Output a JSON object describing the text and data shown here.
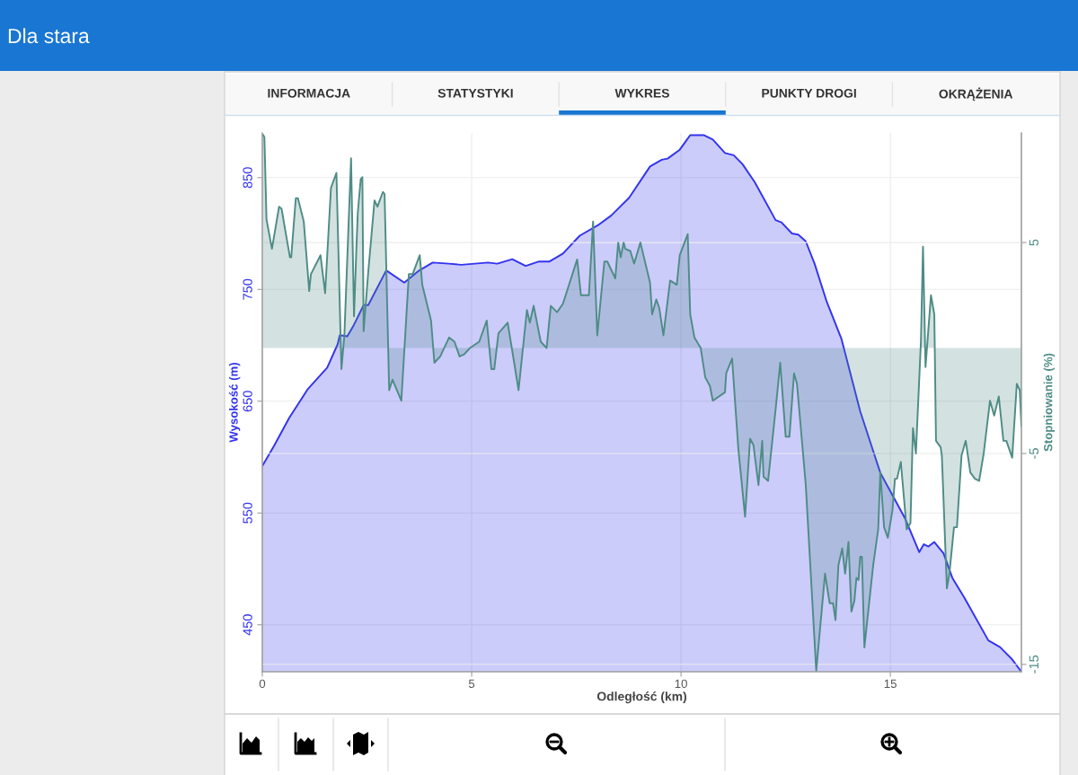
{
  "chart_data": {
    "type": "area",
    "title": "Dla stara",
    "annotations": [
      "INFORMACJA",
      "STATYSTYKI",
      "WYKRES",
      "PUNKTY DROGI",
      "OKRĄŻENIA"
    ],
    "xlabel": "Odległość (km)",
    "ylabel": "Wysokość (m)",
    "y2label": "Stopniowanie (%)",
    "xlim": [
      0,
      18.13
    ],
    "xticks": [
      0,
      5,
      10,
      15
    ],
    "ylim": [
      408,
      890
    ],
    "yticks": [
      450,
      550,
      650,
      750,
      850
    ],
    "y2lim": [
      -15.35,
      10.2
    ],
    "y2ticks": [
      -15,
      -5,
      5
    ],
    "grid": true,
    "series": [
      {
        "color": "#3333ee",
        "x": [
          0,
          0.28,
          0.64,
          1.09,
          1.55,
          1.8,
          1.85,
          2.03,
          2.17,
          2.42,
          2.53,
          2.96,
          3.39,
          3.75,
          4.07,
          4.46,
          4.75,
          5.39,
          5.61,
          5.97,
          6.29,
          6.61,
          6.86,
          7.18,
          7.58,
          8.04,
          8.33,
          8.76,
          9.26,
          9.54,
          9.68,
          9.97,
          10.22,
          10.54,
          10.76,
          11.05,
          11.26,
          11.47,
          11.76,
          12.26,
          12.4,
          12.65,
          12.8,
          12.98,
          13.19,
          13.48,
          13.83,
          14.28,
          14.76,
          15.34,
          15.69,
          15.8,
          15.91,
          16.05,
          16.27,
          16.48,
          16.77,
          17.34,
          17.62,
          17.91,
          18.13
        ],
        "values": [
          592,
          610,
          635,
          661,
          680,
          701,
          709,
          708,
          717,
          736,
          736,
          767,
          756,
          767,
          774,
          773,
          772,
          774,
          773,
          777,
          771,
          775,
          775,
          782,
          798,
          808,
          816,
          832,
          860,
          866,
          867,
          875,
          888,
          888,
          884,
          872,
          870,
          862,
          846,
          812,
          810,
          800,
          799,
          793,
          773,
          739,
          706,
          641,
          586,
          546,
          515,
          522,
          520,
          524,
          514,
          492,
          474,
          436,
          430,
          419,
          408
        ]
      },
      {
        "axis": "y2",
        "color": "#4f8c86",
        "x": [
          0.02,
          0.05,
          0.1,
          0.23,
          0.4,
          0.46,
          0.66,
          0.69,
          0.8,
          0.85,
          0.99,
          1.12,
          1.16,
          1.39,
          1.5,
          1.64,
          1.77,
          1.87,
          1.89,
          1.96,
          2.12,
          2.19,
          2.25,
          2.28,
          2.35,
          2.39,
          2.42,
          2.53,
          2.68,
          2.75,
          2.88,
          2.92,
          3.03,
          3.11,
          3.32,
          3.5,
          3.59,
          3.76,
          3.82,
          4.03,
          4.11,
          4.25,
          4.46,
          4.59,
          4.71,
          4.82,
          4.96,
          5.18,
          5.36,
          5.47,
          5.54,
          5.64,
          5.86,
          6.04,
          6.12,
          6.32,
          6.39,
          6.48,
          6.65,
          6.79,
          6.89,
          7.04,
          7.18,
          7.52,
          7.61,
          7.8,
          7.9,
          8.0,
          8.17,
          8.24,
          8.43,
          8.5,
          8.56,
          8.63,
          8.67,
          8.79,
          8.88,
          9.03,
          9.26,
          9.31,
          9.41,
          9.48,
          9.58,
          9.74,
          9.9,
          9.97,
          10.16,
          10.22,
          10.32,
          10.47,
          10.58,
          10.69,
          10.76,
          11.05,
          11.08,
          11.22,
          11.37,
          11.53,
          11.65,
          11.73,
          11.85,
          11.94,
          11.97,
          12.08,
          12.26,
          12.37,
          12.5,
          12.59,
          12.7,
          12.77,
          12.98,
          13.23,
          13.44,
          13.55,
          13.63,
          13.69,
          13.76,
          13.85,
          13.92,
          14.0,
          14.07,
          14.14,
          14.19,
          14.24,
          14.28,
          14.32,
          14.38,
          14.59,
          14.71,
          14.76,
          14.85,
          14.94,
          15.05,
          15.11,
          15.16,
          15.25,
          15.39,
          15.48,
          15.54,
          15.61,
          15.73,
          15.78,
          15.84,
          15.97,
          16.05,
          16.09,
          16.2,
          16.23,
          16.35,
          16.41,
          16.52,
          16.59,
          16.7,
          16.8,
          16.91,
          17.02,
          17.12,
          17.23,
          17.38,
          17.48,
          17.59,
          17.7,
          17.77,
          17.91,
          18.02,
          18.09,
          18.13
        ],
        "values": [
          10.1,
          10.0,
          6.1,
          4.7,
          6.7,
          6.6,
          4.3,
          4.3,
          7.1,
          7.1,
          6.0,
          2.7,
          3.5,
          4.4,
          2.6,
          7.6,
          8.3,
          0.5,
          -1.0,
          0.6,
          9.0,
          1.5,
          4.9,
          6.4,
          8.0,
          8.1,
          0.8,
          3.6,
          7.0,
          6.7,
          7.4,
          7.3,
          -2.0,
          -1.5,
          -2.5,
          3.5,
          3.5,
          4.4,
          3.0,
          1.3,
          -0.7,
          -0.4,
          0.5,
          0.3,
          -0.4,
          -0.3,
          0.0,
          0.3,
          1.3,
          -1.0,
          -1.0,
          0.7,
          1.2,
          -1.0,
          -2.0,
          1.8,
          1.2,
          2.0,
          0.3,
          0.0,
          2.0,
          1.7,
          2.1,
          4.2,
          2.5,
          2.5,
          6.0,
          0.6,
          4.1,
          4.1,
          3.3,
          5.0,
          4.3,
          5.0,
          4.7,
          4.6,
          4.0,
          5.0,
          3.1,
          1.6,
          2.3,
          1.9,
          0.6,
          3.2,
          3.0,
          4.4,
          5.4,
          1.6,
          0.5,
          0.0,
          -1.4,
          -1.8,
          -2.5,
          -2.1,
          -1.2,
          -0.5,
          -4.8,
          -8.0,
          -4.3,
          -4.6,
          -6.5,
          -4.4,
          -6.1,
          -6.3,
          -2.9,
          -0.7,
          -4.2,
          -4.2,
          -1.2,
          -1.7,
          -6.5,
          -15.3,
          -10.7,
          -12.1,
          -12.1,
          -12.9,
          -10.3,
          -9.5,
          -10.7,
          -9.2,
          -12.5,
          -12.0,
          -10.9,
          -11.0,
          -9.9,
          -9.9,
          -14.2,
          -10.3,
          -8.6,
          -5.9,
          -8.5,
          -9.0,
          -7.7,
          -6.2,
          -6.2,
          -5.4,
          -8.6,
          -8.3,
          -3.8,
          -5.0,
          0.3,
          4.8,
          -0.9,
          2.5,
          1.6,
          -4.4,
          -4.7,
          -5.1,
          -11.4,
          -10.7,
          -8.5,
          -8.5,
          -5.1,
          -4.4,
          -5.9,
          -6.2,
          -6.3,
          -5.0,
          -2.5,
          -3.2,
          -2.3,
          -4.4,
          -4.4,
          -5.2,
          -1.7,
          -2.0,
          -3.7
        ]
      }
    ]
  }
}
